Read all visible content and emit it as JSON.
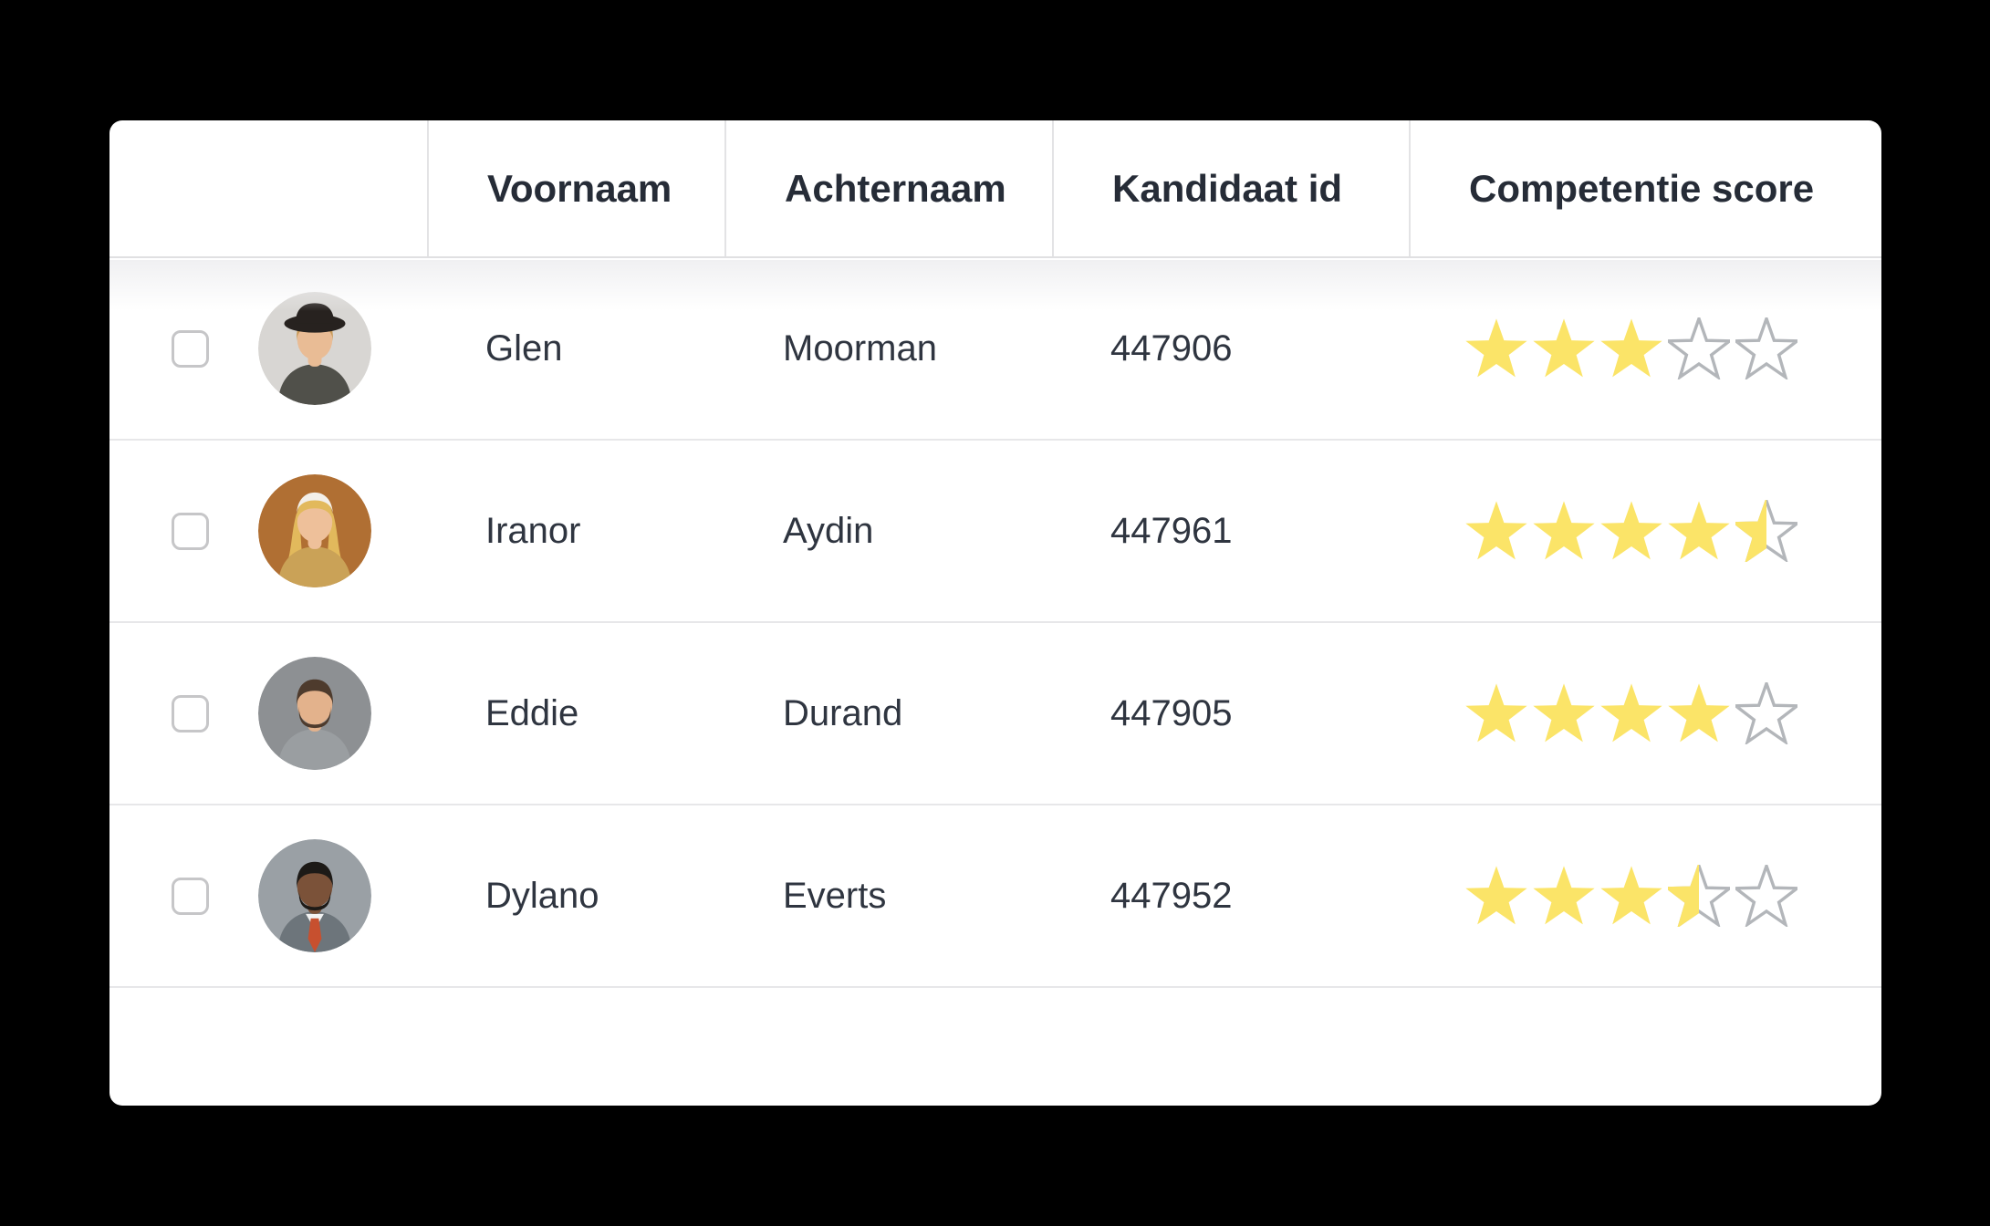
{
  "colors": {
    "page_bg": "#000000",
    "card_bg": "#ffffff",
    "header_text": "#262c37",
    "body_text": "#2f3540",
    "row_divider": "#e7e7e9",
    "header_divider": "#e0e0e2",
    "column_divider": "#e3e3e5",
    "star_filled": "#fbe468",
    "star_empty_stroke": "#b3b6ba",
    "checkbox_border": "#c6c6c8",
    "shadow_band": "#f0f0f2"
  },
  "table": {
    "columns": [
      {
        "label": ""
      },
      {
        "label": "Voornaam"
      },
      {
        "label": "Achternaam"
      },
      {
        "label": "Kandidaat id"
      },
      {
        "label": "Competentie score"
      }
    ],
    "max_score": 5,
    "rows": [
      {
        "voornaam": "Glen",
        "achternaam": "Moorman",
        "kandidaat_id": "447906",
        "score": 3,
        "avatar": {
          "desc": "young man with curly blond hair wearing black hat",
          "bg": "#d8d6d3",
          "skin": "#e9bc95",
          "hair": "#c89a58",
          "shirt": "#50504a",
          "hat": "#27221f"
        }
      },
      {
        "voornaam": "Iranor",
        "achternaam": "Aydin",
        "kandidaat_id": "447961",
        "score": 4.5,
        "avatar": {
          "desc": "smiling blonde woman with white headband",
          "bg": "#b06f33",
          "skin": "#eec09a",
          "hair": "#e2b95c",
          "shirt": "#caa257",
          "headband": "#f3efe9",
          "long_hair": true
        }
      },
      {
        "voornaam": "Eddie",
        "achternaam": "Durand",
        "kandidaat_id": "447905",
        "score": 4,
        "avatar": {
          "desc": "man with short dark hair and beard",
          "bg": "#8d9093",
          "skin": "#e3b28c",
          "hair": "#4e3b2d",
          "shirt": "#9a9ea1",
          "beard": "#4e3b2d"
        }
      },
      {
        "voornaam": "Dylano",
        "achternaam": "Everts",
        "kandidaat_id": "447952",
        "score": 3.5,
        "avatar": {
          "desc": "dark-skinned man in gray suit with orange tie",
          "bg": "#9aa0a5",
          "skin": "#7b5239",
          "hair": "#1d1a17",
          "shirt": "#6d757b",
          "beard": "#1d1a17",
          "collar": "#f2f2f2",
          "tie": "#c7502f"
        }
      }
    ]
  }
}
